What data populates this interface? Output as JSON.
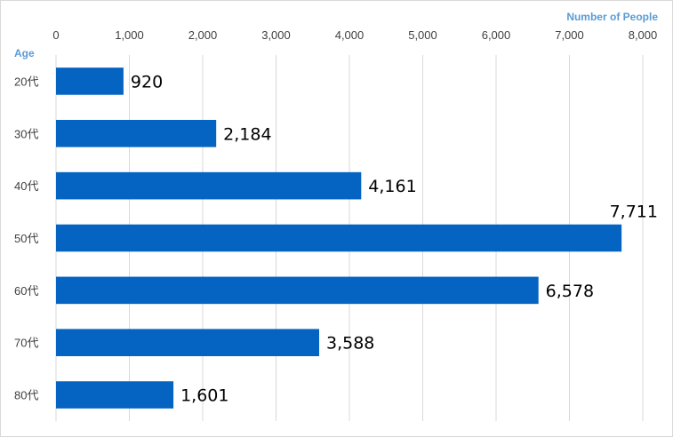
{
  "chart_data": {
    "type": "bar",
    "orientation": "horizontal",
    "categories": [
      "20代",
      "30代",
      "40代",
      "50代",
      "60代",
      "70代",
      "80代"
    ],
    "values": [
      920,
      2184,
      4161,
      7711,
      6578,
      3588,
      1601
    ],
    "value_labels": [
      "920",
      "2,184",
      "4,161",
      "7,711",
      "6,578",
      "3,588",
      "1,601"
    ],
    "xlabel": "Number of People",
    "ylabel": "Age",
    "xlim": [
      0,
      8000
    ],
    "xticks": [
      0,
      1000,
      2000,
      3000,
      4000,
      5000,
      6000,
      7000,
      8000
    ],
    "xtick_labels": [
      "0",
      "1,000",
      "2,000",
      "3,000",
      "4,000",
      "5,000",
      "6,000",
      "7,000",
      "8,000"
    ],
    "x_axis_position": "top",
    "grid": true,
    "legend": false
  },
  "colors": {
    "bar": "#0563C1",
    "axis_title": "#5B9BD5",
    "grid": "#d9d9d9"
  }
}
